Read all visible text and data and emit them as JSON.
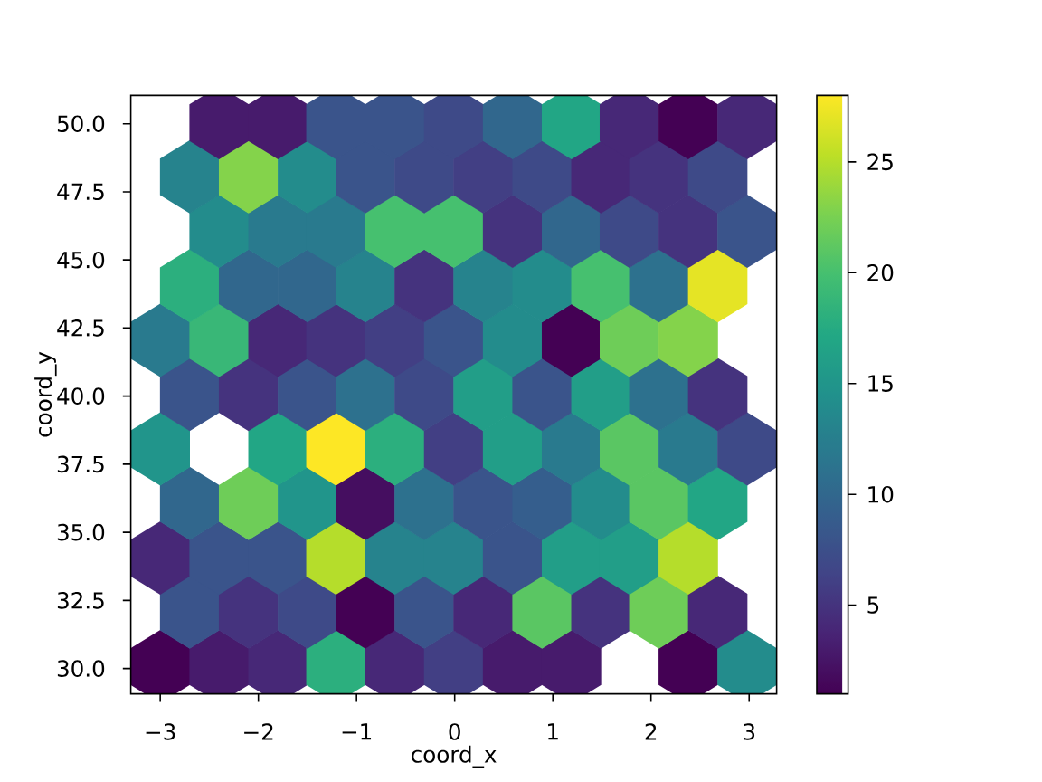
{
  "chart_data": {
    "type": "scatter",
    "xlabel": "coord_x",
    "ylabel": "coord_y",
    "x": [
      -3.0,
      -2.4,
      -1.8,
      -1.21,
      -0.61,
      -0.01,
      0.59,
      1.19,
      2.38,
      2.98,
      -2.7,
      -2.1,
      -1.5,
      -0.91,
      -0.31,
      0.29,
      0.89,
      1.49,
      2.08,
      2.68,
      -3.0,
      -2.4,
      -1.8,
      -1.21,
      -0.61,
      -0.01,
      0.59,
      1.19,
      1.78,
      2.38,
      -2.7,
      -2.1,
      -1.5,
      -0.91,
      -0.31,
      0.29,
      0.89,
      1.49,
      2.08,
      2.68,
      -3.0,
      -1.8,
      -1.21,
      -0.61,
      -0.01,
      0.59,
      1.19,
      1.78,
      2.38,
      2.98,
      -2.7,
      -2.1,
      -1.5,
      -0.91,
      -0.31,
      0.29,
      0.89,
      1.49,
      2.08,
      2.68,
      -3.0,
      -2.4,
      -1.8,
      -1.21,
      -0.61,
      -0.01,
      0.59,
      1.19,
      1.78,
      2.38,
      -2.7,
      -2.1,
      -1.5,
      -0.91,
      -0.31,
      0.29,
      0.89,
      1.49,
      2.08,
      2.68,
      -2.4,
      -1.8,
      -1.21,
      -0.61,
      -0.01,
      0.59,
      1.19,
      1.78,
      2.38,
      2.98,
      -2.7,
      -2.1,
      -1.5,
      -0.91,
      -0.31,
      0.29,
      0.89,
      1.49,
      2.08,
      2.68,
      -2.4,
      -1.8,
      -1.21,
      -0.61,
      -0.01,
      0.59,
      1.19,
      1.78,
      2.38,
      2.98
    ],
    "values": [
      30.07,
      30.07,
      30.07,
      30.07,
      30.07,
      30.07,
      30.07,
      30.07,
      30.07,
      30.07,
      32.07,
      32.07,
      32.07,
      32.07,
      32.07,
      32.07,
      32.07,
      32.07,
      32.07,
      32.07,
      34.06,
      34.06,
      34.06,
      34.06,
      34.06,
      34.06,
      34.06,
      34.06,
      34.06,
      34.06,
      36.06,
      36.06,
      36.06,
      36.06,
      36.06,
      36.06,
      36.06,
      36.06,
      36.06,
      36.06,
      38.06,
      38.06,
      38.06,
      38.06,
      38.06,
      38.06,
      38.06,
      38.06,
      38.06,
      38.06,
      40.06,
      40.06,
      40.06,
      40.06,
      40.06,
      40.06,
      40.06,
      40.06,
      40.06,
      40.06,
      42.05,
      42.05,
      42.05,
      42.05,
      42.05,
      42.05,
      42.05,
      42.05,
      42.05,
      42.05,
      44.05,
      44.05,
      44.05,
      44.05,
      44.05,
      44.05,
      44.05,
      44.05,
      44.05,
      44.05,
      46.05,
      46.05,
      46.05,
      46.05,
      46.05,
      46.05,
      46.05,
      46.05,
      46.05,
      46.05,
      48.05,
      48.05,
      48.05,
      48.05,
      48.05,
      48.05,
      48.05,
      48.05,
      48.05,
      48.05,
      50.04,
      50.04,
      50.04,
      50.04,
      50.04,
      50.04,
      50.04,
      50.04,
      50.04,
      50.04
    ],
    "cvalues": [
      1,
      3,
      4,
      18,
      4,
      6,
      3,
      3,
      1,
      14,
      8,
      5,
      7,
      1,
      8,
      4,
      21,
      5,
      22,
      4,
      4,
      8,
      8,
      25,
      13,
      13,
      8,
      16,
      16,
      25,
      10,
      22,
      15,
      2,
      11,
      8,
      9,
      14,
      21,
      17,
      15,
      17,
      28,
      18,
      6,
      16,
      12,
      21,
      12,
      7,
      8,
      5,
      8,
      11,
      7,
      16,
      8,
      16,
      11,
      5,
      12,
      19,
      4,
      5,
      6,
      8,
      14,
      1,
      22,
      23,
      18,
      10,
      10,
      13,
      5,
      13,
      14,
      20,
      11,
      27,
      14,
      12,
      12,
      20,
      20,
      5,
      10,
      7,
      5,
      8,
      13,
      23,
      14,
      8,
      7,
      6,
      7,
      4,
      5,
      7,
      3,
      3,
      8,
      8,
      7,
      10,
      17,
      4,
      1,
      4
    ],
    "xlim": [
      -3.3,
      3.28
    ],
    "ylim": [
      29.07,
      51.04
    ],
    "xticks": [
      {
        "value": -3,
        "label": "−3"
      },
      {
        "value": -2,
        "label": "−2"
      },
      {
        "value": -1,
        "label": "−1"
      },
      0,
      1,
      2,
      3
    ],
    "yticks": [
      {
        "value": 30,
        "label": "30.0"
      },
      32.5,
      {
        "value": 35,
        "label": "35.0"
      },
      37.5,
      {
        "value": 40,
        "label": "40.0"
      },
      42.5,
      {
        "value": 45,
        "label": "45.0"
      },
      47.5,
      {
        "value": 50,
        "label": "50.0"
      }
    ],
    "clim": [
      1,
      28
    ],
    "cticks": [
      5,
      10,
      15,
      20,
      25
    ]
  }
}
